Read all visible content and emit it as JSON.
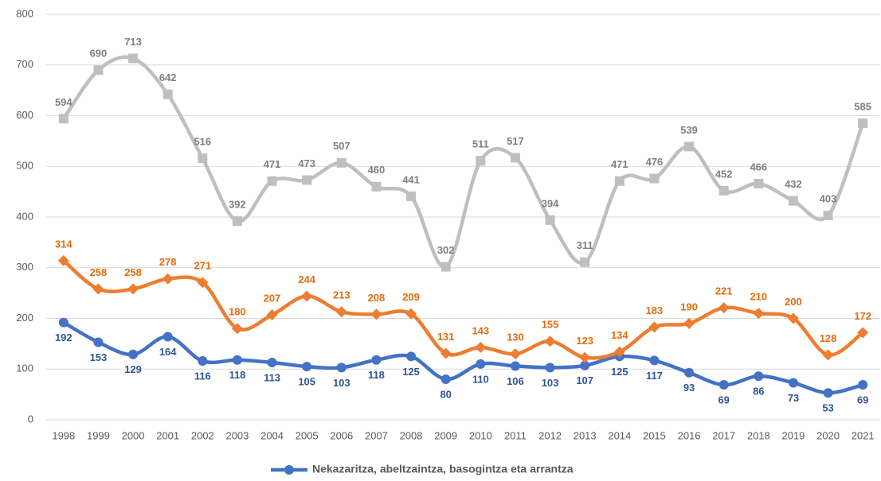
{
  "chart_data": {
    "type": "line",
    "categories": [
      "1998",
      "1999",
      "2000",
      "2001",
      "2002",
      "2003",
      "2004",
      "2005",
      "2006",
      "2007",
      "2008",
      "2009",
      "2010",
      "2011",
      "2012",
      "2013",
      "2014",
      "2015",
      "2016",
      "2017",
      "2018",
      "2019",
      "2020",
      "2021"
    ],
    "series": [
      {
        "name": "Nekazaritza, abeltzaintza, basogintza eta arrantza",
        "color": "#4472c4",
        "label_color": "#2f5597",
        "marker": "circle",
        "label_position": "below",
        "values": [
          192,
          153,
          129,
          164,
          116,
          118,
          113,
          105,
          103,
          118,
          125,
          80,
          110,
          106,
          103,
          107,
          125,
          117,
          93,
          69,
          86,
          73,
          53,
          69
        ]
      },
      {
        "color": "#bfbfbf",
        "label_color": "#7f7f7f",
        "marker": "square",
        "label_position": "above",
        "values": [
          594,
          690,
          713,
          642,
          516,
          392,
          471,
          473,
          507,
          460,
          441,
          302,
          511,
          517,
          394,
          311,
          471,
          476,
          539,
          452,
          466,
          432,
          403,
          585
        ]
      },
      {
        "color": "#ed7d31",
        "label_color": "#e46c0a",
        "marker": "diamond",
        "label_position": "above",
        "values": [
          314,
          258,
          258,
          278,
          271,
          180,
          207,
          244,
          213,
          208,
          209,
          131,
          143,
          130,
          155,
          123,
          134,
          183,
          190,
          221,
          210,
          200,
          128,
          172
        ]
      }
    ],
    "ylim": [
      0,
      800
    ],
    "yticks": [
      0,
      100,
      200,
      300,
      400,
      500,
      600,
      700,
      800
    ],
    "grid": true,
    "smooth": true,
    "legend": "bottom"
  }
}
